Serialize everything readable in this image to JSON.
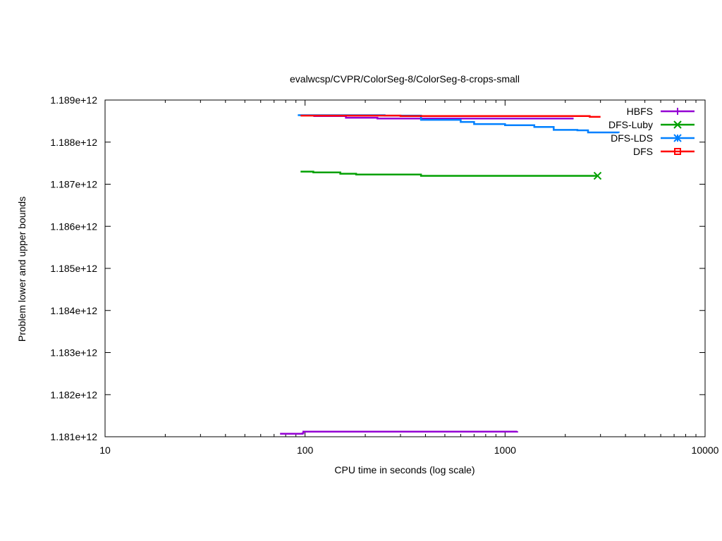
{
  "chart_data": {
    "type": "line",
    "title": "evalwcsp/CVPR/ColorSeg-8/ColorSeg-8-crops-small",
    "xlabel": "CPU time in seconds (log scale)",
    "ylabel": "Problem lower and upper bounds",
    "xscale": "log",
    "xlim": [
      10,
      10000
    ],
    "ylim": [
      1181000000000.0,
      1189000000000.0
    ],
    "grid": false,
    "legend_position": "top-right",
    "x_ticks": [
      {
        "value": 10,
        "label": "10"
      },
      {
        "value": 100,
        "label": "100"
      },
      {
        "value": 1000,
        "label": "1000"
      },
      {
        "value": 10000,
        "label": "10000"
      }
    ],
    "y_ticks": [
      {
        "value": 1181000000000.0,
        "label": "1.181e+12"
      },
      {
        "value": 1182000000000.0,
        "label": "1.182e+12"
      },
      {
        "value": 1183000000000.0,
        "label": "1.183e+12"
      },
      {
        "value": 1184000000000.0,
        "label": "1.184e+12"
      },
      {
        "value": 1185000000000.0,
        "label": "1.185e+12"
      },
      {
        "value": 1186000000000.0,
        "label": "1.186e+12"
      },
      {
        "value": 1187000000000.0,
        "label": "1.187e+12"
      },
      {
        "value": 1188000000000.0,
        "label": "1.188e+12"
      },
      {
        "value": 1189000000000.0,
        "label": "1.189e+12"
      }
    ],
    "series": [
      {
        "name": "HBFS",
        "color": "#9400d3",
        "marker": "plus",
        "segments": [
          [
            [
              110,
              1188620000000.0
            ],
            [
              160,
              1188580000000.0
            ],
            [
              230,
              1188560000000.0
            ],
            [
              2200,
              1188560000000.0
            ]
          ],
          [
            [
              75,
              1181070000000.0
            ],
            [
              97,
              1181080000000.0
            ],
            [
              98,
              1181120000000.0
            ],
            [
              1150,
              1181130000000.0
            ]
          ]
        ]
      },
      {
        "name": "DFS-Luby",
        "color": "#00a000",
        "marker": "x",
        "segments": [
          [
            [
              95,
              1187300000000.0
            ],
            [
              110,
              1187280000000.0
            ],
            [
              150,
              1187250000000.0
            ],
            [
              180,
              1187230000000.0
            ],
            [
              380,
              1187200000000.0
            ],
            [
              2900,
              1187200000000.0
            ]
          ]
        ]
      },
      {
        "name": "DFS-LDS",
        "color": "#0080ff",
        "marker": "star",
        "segments": [
          [
            [
              92,
              1188640000000.0
            ],
            [
              250,
              1188630000000.0
            ],
            [
              380,
              1188530000000.0
            ],
            [
              600,
              1188480000000.0
            ],
            [
              700,
              1188430000000.0
            ],
            [
              1000,
              1188400000000.0
            ],
            [
              1400,
              1188360000000.0
            ],
            [
              1750,
              1188290000000.0
            ],
            [
              2300,
              1188280000000.0
            ],
            [
              2600,
              1188230000000.0
            ],
            [
              3700,
              1188220000000.0
            ]
          ]
        ]
      },
      {
        "name": "DFS",
        "color": "#ff0000",
        "marker": "square",
        "segments": [
          [
            [
              95,
              1188630000000.0
            ],
            [
              300,
              1188620000000.0
            ],
            [
              2500,
              1188620000000.0
            ],
            [
              2650,
              1188600000000.0
            ],
            [
              3000,
              1188600000000.0
            ]
          ]
        ]
      }
    ],
    "end_markers": [
      {
        "series": "DFS-Luby",
        "x": 2900,
        "y": 1187200000000.0
      }
    ]
  }
}
